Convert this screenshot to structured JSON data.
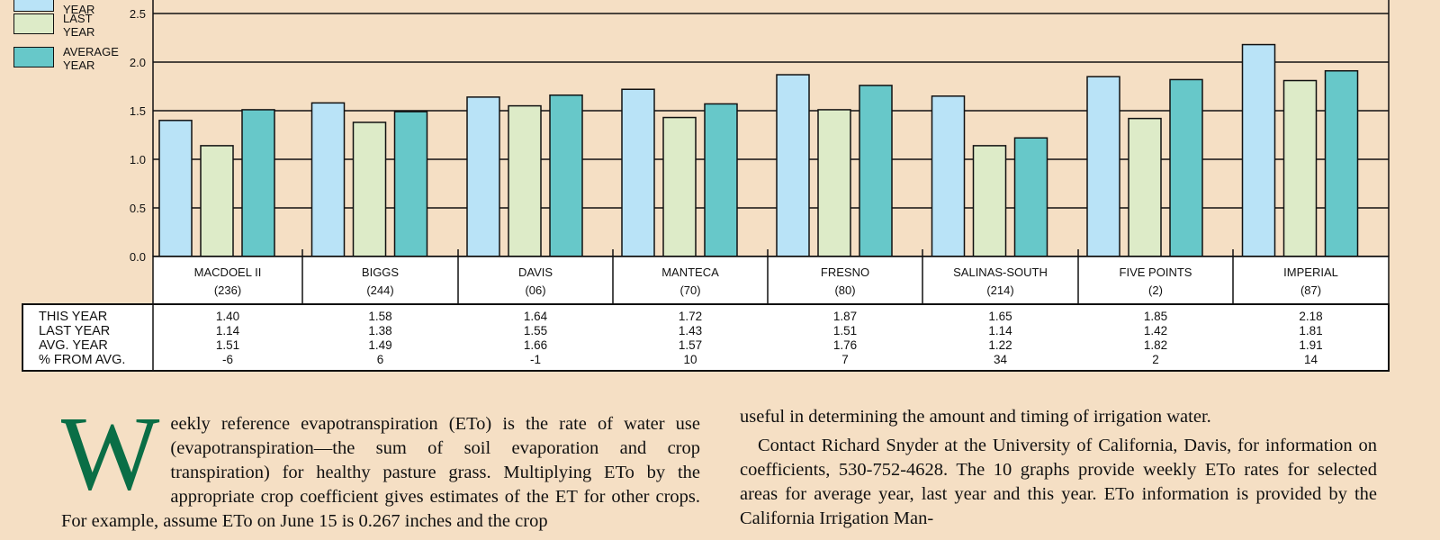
{
  "colors": {
    "background": "#f5dfc4",
    "this_year": "#b9e3f7",
    "last_year": "#ddebc8",
    "avg_year": "#67c8c9",
    "dropcap": "#0a6e46"
  },
  "legend": [
    {
      "label": "THIS YEAR",
      "color": "#b9e3f7"
    },
    {
      "label": "LAST YEAR",
      "color": "#ddebc8"
    },
    {
      "label": "AVERAGE YEAR",
      "color": "#67c8c9"
    }
  ],
  "chart_data": {
    "type": "bar",
    "ylim": [
      0,
      2.5
    ],
    "y_ticks": [
      "0.0",
      "0.5",
      "1.0",
      "1.5",
      "2.0",
      "2.5"
    ],
    "categories": [
      {
        "name": "MACDOEL II",
        "code": "(236)"
      },
      {
        "name": "BIGGS",
        "code": "(244)"
      },
      {
        "name": "DAVIS",
        "code": "(06)"
      },
      {
        "name": "MANTECA",
        "code": "(70)"
      },
      {
        "name": "FRESNO",
        "code": "(80)"
      },
      {
        "name": "SALINAS-SOUTH",
        "code": "(214)"
      },
      {
        "name": "FIVE POINTS",
        "code": "(2)"
      },
      {
        "name": "IMPERIAL",
        "code": "(87)"
      }
    ],
    "series": [
      {
        "name": "THIS YEAR",
        "values": [
          1.4,
          1.58,
          1.64,
          1.72,
          1.87,
          1.65,
          1.85,
          2.18
        ]
      },
      {
        "name": "LAST YEAR",
        "values": [
          1.14,
          1.38,
          1.55,
          1.43,
          1.51,
          1.14,
          1.42,
          1.81
        ]
      },
      {
        "name": "AVERAGE YEAR",
        "values": [
          1.51,
          1.49,
          1.66,
          1.57,
          1.76,
          1.22,
          1.82,
          1.91
        ]
      }
    ],
    "table": {
      "row_labels": [
        "THIS YEAR",
        "LAST YEAR",
        "AVG. YEAR",
        "% FROM AVG."
      ],
      "rows": [
        [
          "1.40",
          "1.58",
          "1.64",
          "1.72",
          "1.87",
          "1.65",
          "1.85",
          "2.18"
        ],
        [
          "1.14",
          "1.38",
          "1.55",
          "1.43",
          "1.51",
          "1.14",
          "1.42",
          "1.81"
        ],
        [
          "1.51",
          "1.49",
          "1.66",
          "1.57",
          "1.76",
          "1.22",
          "1.82",
          "1.91"
        ],
        [
          "-6",
          "6",
          "-1",
          "10",
          "7",
          "34",
          "2",
          "14"
        ]
      ]
    }
  },
  "article": {
    "dropcap": "W",
    "col1_text": "eekly reference evapotranspiration (ETo) is the rate of water use (evapotranspiration—the sum of soil evaporation and crop transpiration) for healthy pasture grass. Multiplying ETo by the appropriate crop coefficient gives estimates of the ET for other crops. For example, assume ETo on June 15 is 0.267 inches and the crop",
    "col2_p1": "useful in determining the amount and timing of irrigation water.",
    "col2_p2": "Contact Richard Snyder at the University of California, Davis, for information on coefficients, 530-752-4628. The 10 graphs provide weekly ETo rates for selected areas for average year, last year and this year. ETo information is provided by the California Irrigation Man-"
  }
}
